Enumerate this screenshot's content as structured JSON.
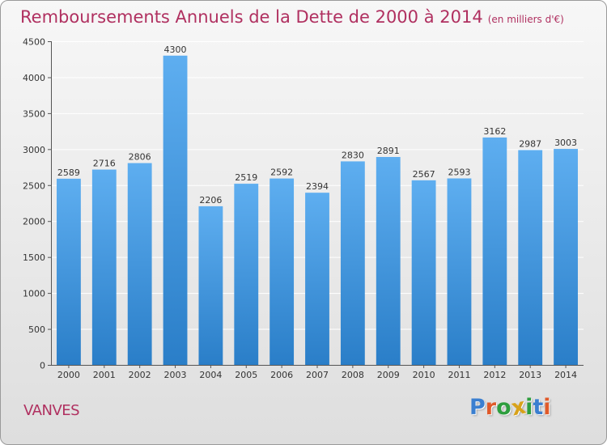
{
  "header": {
    "title": "Remboursements Annuels de la Dette de 2000 à 2014",
    "unit": "(en milliers d'€)"
  },
  "footer": {
    "city": "VANVES",
    "logo": "Proxiti",
    "logo_colors": [
      "#3a7fd0",
      "#e05a2a",
      "#2e9e3e",
      "#d8a21a",
      "#2e9e3e",
      "#3a7fd0",
      "#e05a2a"
    ]
  },
  "colors": {
    "bar_top": "#5eaef0",
    "bar_bottom": "#2a7ec8",
    "grid": "#ffffff",
    "axis_text": "#333333"
  },
  "chart_data": {
    "type": "bar",
    "title": "Remboursements Annuels de la Dette de 2000 à 2014",
    "categories": [
      "2000",
      "2001",
      "2002",
      "2003",
      "2004",
      "2005",
      "2006",
      "2007",
      "2008",
      "2009",
      "2010",
      "2011",
      "2012",
      "2013",
      "2014"
    ],
    "values": [
      2589,
      2716,
      2806,
      4300,
      2206,
      2519,
      2592,
      2394,
      2830,
      2891,
      2567,
      2593,
      3162,
      2987,
      3003
    ],
    "value_labels": [
      "2589",
      "2716",
      "2806",
      "4300",
      "2206",
      "2519",
      "2592",
      "2394",
      "2830",
      "2891",
      "2567",
      "2593",
      "3162",
      "2987",
      "3003"
    ],
    "ylim": [
      0,
      4500
    ],
    "yticks": [
      0,
      500,
      1000,
      1500,
      2000,
      2500,
      3000,
      3500,
      4000,
      4500
    ],
    "ytick_labels": [
      "0",
      "500",
      "1000",
      "1500",
      "2000",
      "2500",
      "3000",
      "3500",
      "4000",
      "4500"
    ],
    "grid": true,
    "legend": "none",
    "xlabel": "",
    "ylabel": ""
  }
}
